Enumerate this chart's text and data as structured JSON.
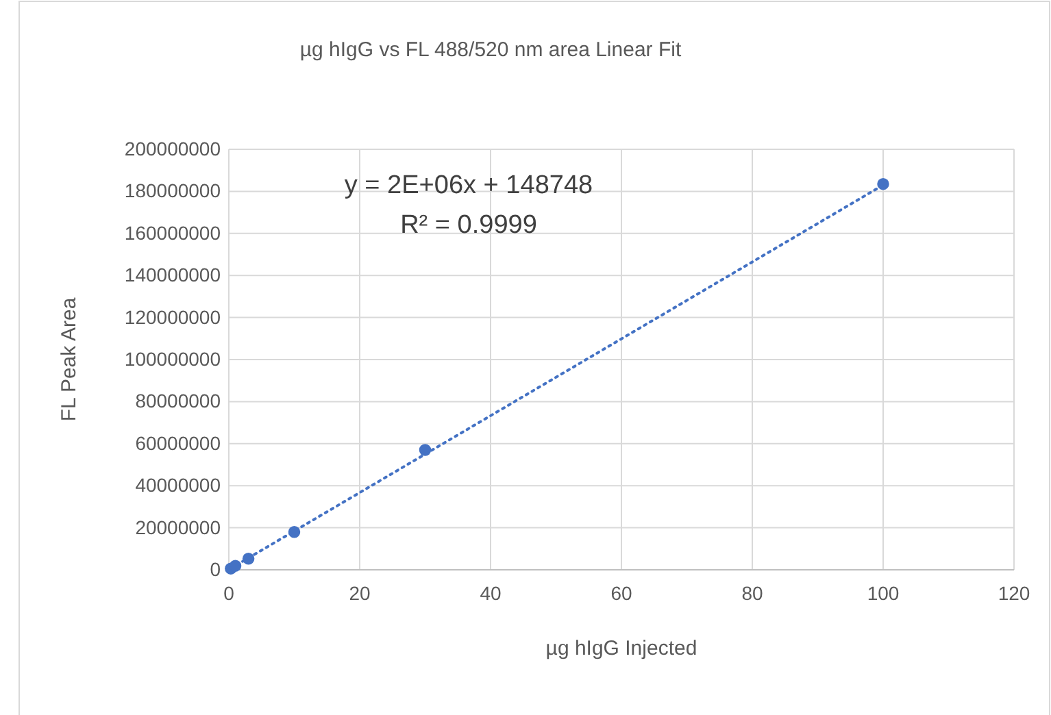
{
  "chart_data": {
    "type": "scatter",
    "title": "µg hIgG vs FL 488/520 nm area  Linear Fit",
    "xlabel": "µg hIgG Injected",
    "ylabel": "FL Peak Area",
    "xlim": [
      0,
      120
    ],
    "xticks": [
      0,
      20,
      40,
      60,
      80,
      100,
      120
    ],
    "ylim": [
      0,
      200000000
    ],
    "yticks": [
      0,
      20000000,
      40000000,
      60000000,
      80000000,
      100000000,
      120000000,
      140000000,
      160000000,
      180000000,
      200000000
    ],
    "grid": true,
    "marker": "circle",
    "series": [
      {
        "color": "#4472c4",
        "x": [
          0.3,
          1,
          3,
          10,
          30,
          100
        ],
        "values": [
          600000,
          1900000,
          5300000,
          18000000,
          57000000,
          183500000
        ]
      },
      {
        "type": "line",
        "color": "#4472c4",
        "line_style": "dotted",
        "marker": "none",
        "x": [
          0.3,
          100
        ],
        "values": [
          700000,
          183000000
        ]
      }
    ],
    "annotations": [
      "y = 2E+06x + 148748",
      "R² = 0.9999"
    ]
  }
}
